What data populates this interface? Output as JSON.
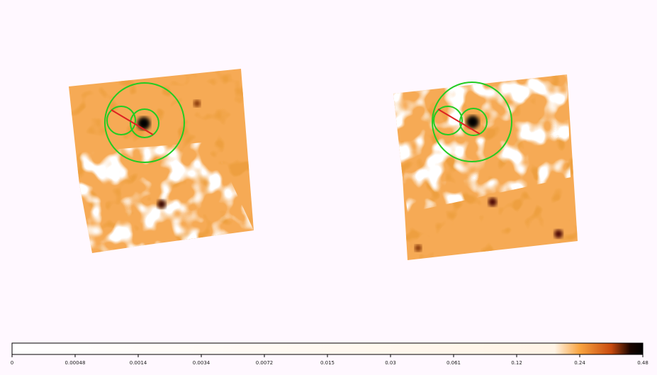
{
  "colorbar": {
    "tick_labels": [
      "0",
      "0.00048",
      "0.0014",
      "0.0034",
      "0.0072",
      "0.015",
      "0.03",
      "0.061",
      "0.12",
      "0.24",
      "0.48"
    ]
  }
}
